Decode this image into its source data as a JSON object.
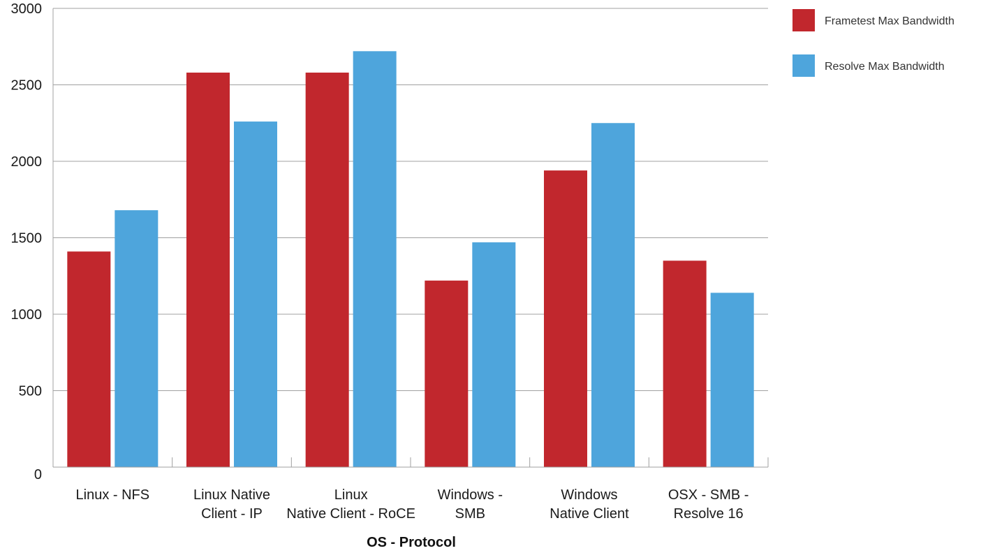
{
  "chart_data": {
    "type": "bar",
    "categories": [
      [
        "Linux - NFS"
      ],
      [
        "Linux Native",
        "Client - IP"
      ],
      [
        "Linux",
        "Native Client - RoCE"
      ],
      [
        "Windows -",
        "SMB"
      ],
      [
        "Windows",
        "Native Client"
      ],
      [
        "OSX - SMB -",
        "Resolve 16"
      ]
    ],
    "series": [
      {
        "name": "Frametest Max Bandwidth",
        "color": "#c1272d",
        "values": [
          1410,
          2580,
          2580,
          1220,
          1940,
          1350
        ]
      },
      {
        "name": "Resolve Max Bandwidth",
        "color": "#4ea5dc",
        "values": [
          1680,
          2260,
          2720,
          1470,
          2250,
          1140
        ]
      }
    ],
    "xlabel": "OS - Protocol",
    "ylabel": "",
    "ylim": [
      0,
      3000
    ],
    "yticks": [
      0,
      500,
      1000,
      1500,
      2000,
      2500,
      3000
    ],
    "grid": true,
    "legend_position": "top-right"
  }
}
